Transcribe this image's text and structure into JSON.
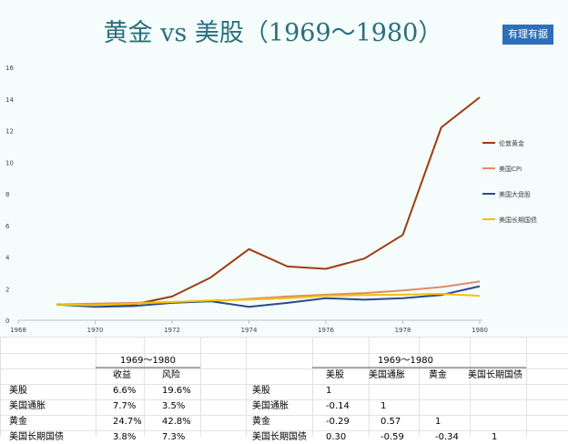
{
  "title": "黄金 vs 美股（1969～1980）",
  "badge": "有理有据",
  "chart_data": {
    "type": "line",
    "x": [
      1969,
      1970,
      1971,
      1972,
      1973,
      1974,
      1975,
      1976,
      1977,
      1978,
      1979,
      1980
    ],
    "x_ticks": [
      1968,
      1970,
      1972,
      1974,
      1976,
      1978,
      1980
    ],
    "y_ticks": [
      0,
      2,
      4,
      6,
      8,
      10,
      12,
      14,
      16
    ],
    "xlim": [
      1968,
      1980
    ],
    "ylim": [
      0,
      16
    ],
    "legend_position": "right",
    "grid": false,
    "series": [
      {
        "name": "伦敦黄金",
        "color": "#9c3d0f",
        "values": [
          1.0,
          0.9,
          1.0,
          1.5,
          2.7,
          4.5,
          3.4,
          3.25,
          3.9,
          5.4,
          12.2,
          14.1
        ]
      },
      {
        "name": "美国CPI",
        "color": "#e08a6a",
        "values": [
          1.0,
          1.05,
          1.1,
          1.15,
          1.2,
          1.35,
          1.5,
          1.62,
          1.72,
          1.88,
          2.1,
          2.45
        ]
      },
      {
        "name": "美国大盘股",
        "color": "#2d4a8c",
        "values": [
          1.0,
          0.85,
          0.9,
          1.1,
          1.2,
          0.85,
          1.1,
          1.4,
          1.3,
          1.4,
          1.6,
          2.15
        ]
      },
      {
        "name": "美国长期国债",
        "color": "#f2c200",
        "values": [
          1.0,
          0.95,
          1.05,
          1.15,
          1.25,
          1.3,
          1.4,
          1.55,
          1.6,
          1.62,
          1.67,
          1.55
        ]
      }
    ]
  },
  "table_left": {
    "period": "1969～1980",
    "columns": [
      "收益",
      "风险"
    ],
    "rows": [
      {
        "name": "美股",
        "return": "6.6%",
        "risk": "19.6%"
      },
      {
        "name": "美国通胀",
        "return": "7.7%",
        "risk": "3.5%"
      },
      {
        "name": "黄金",
        "return": "24.7%",
        "risk": "42.8%"
      },
      {
        "name": "美国长期国债",
        "return": "3.8%",
        "risk": "7.3%"
      }
    ]
  },
  "table_right": {
    "period": "1969～1980",
    "columns": [
      "美股",
      "美国通胀",
      "黄金",
      "美国长期国债"
    ],
    "rows": [
      {
        "name": "美股",
        "values": [
          "1",
          "",
          "",
          ""
        ]
      },
      {
        "name": "美国通胀",
        "values": [
          "-0.14",
          "1",
          "",
          ""
        ]
      },
      {
        "name": "黄金",
        "values": [
          "-0.29",
          "0.57",
          "1",
          ""
        ]
      },
      {
        "name": "美国长期国债",
        "values": [
          "0.30",
          "-0.59",
          "-0.34",
          "1"
        ]
      }
    ]
  }
}
